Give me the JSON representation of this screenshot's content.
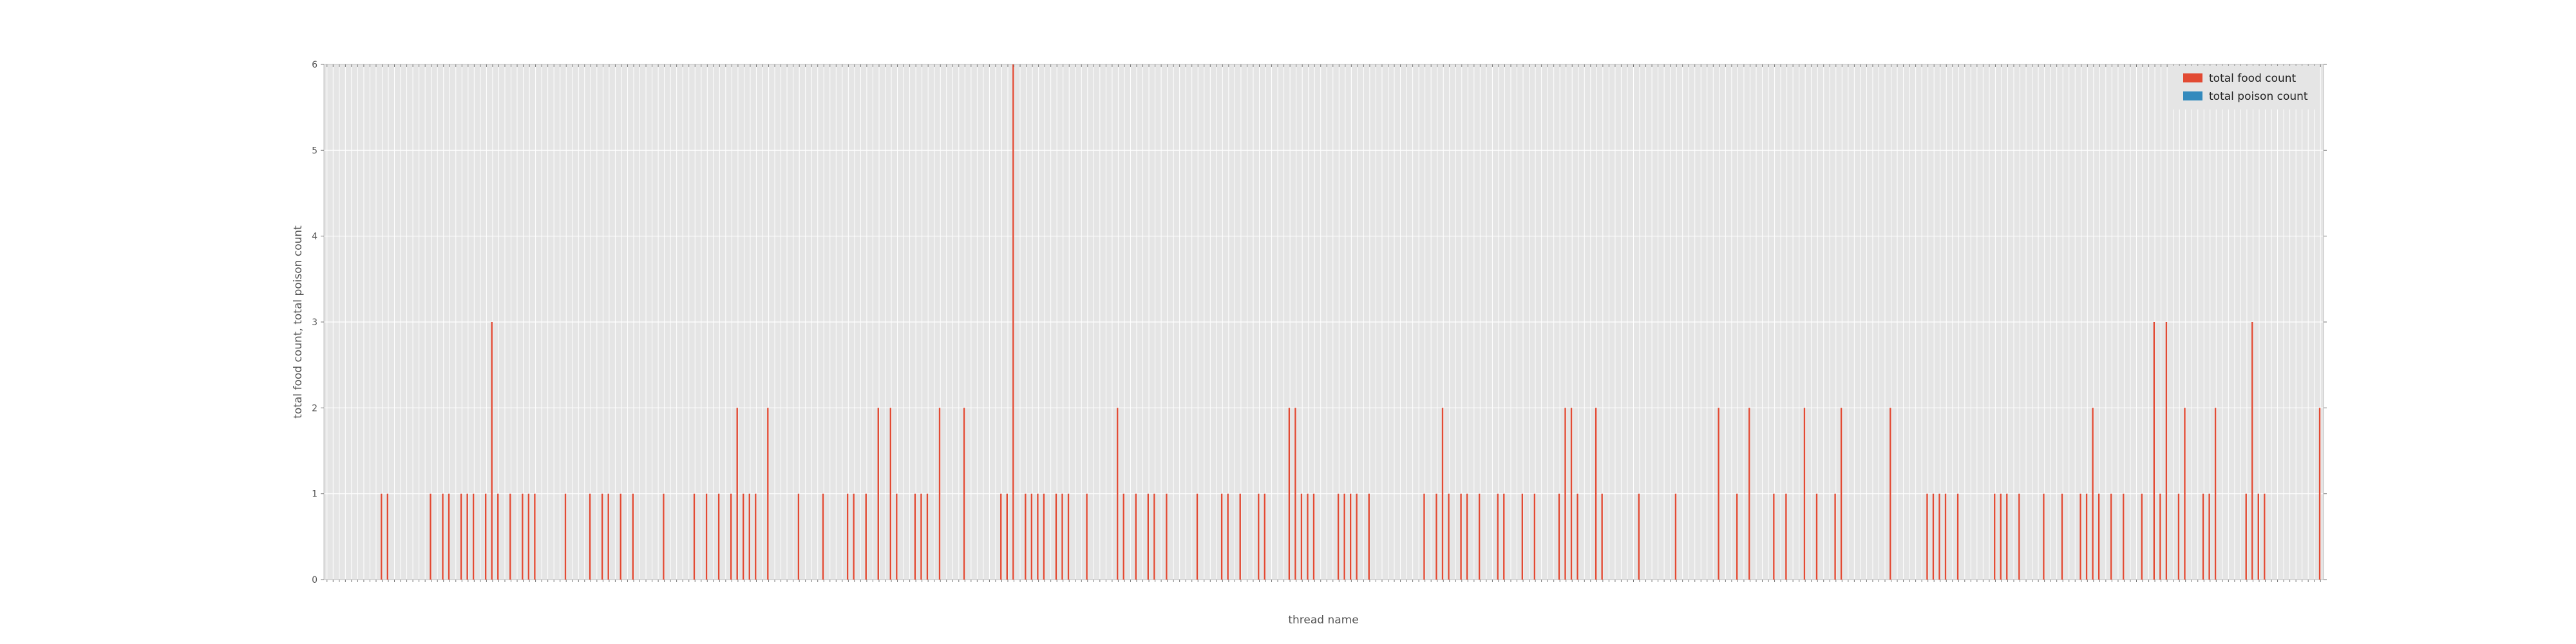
{
  "chart_data": {
    "type": "bar",
    "xlabel": "thread name",
    "ylabel": "total food count, total poison count",
    "ylim": [
      0,
      6
    ],
    "y_ticks": [
      0,
      1,
      2,
      3,
      4,
      5,
      6
    ],
    "grid": true,
    "legend_position": "top-right",
    "x_tick_labels_unreadable": true,
    "series": [
      {
        "name": "total food count",
        "color": "#E24A33",
        "values": [
          0,
          0,
          0,
          0,
          0,
          0,
          0,
          0,
          0,
          1,
          1,
          0,
          0,
          0,
          0,
          0,
          0,
          1,
          0,
          1,
          1,
          0,
          1,
          1,
          1,
          0,
          1,
          3,
          1,
          0,
          1,
          0,
          1,
          1,
          1,
          0,
          0,
          0,
          0,
          1,
          0,
          0,
          0,
          1,
          0,
          1,
          1,
          0,
          1,
          0,
          1,
          0,
          0,
          0,
          0,
          1,
          0,
          0,
          0,
          0,
          1,
          0,
          1,
          0,
          1,
          0,
          1,
          2,
          1,
          1,
          1,
          0,
          2,
          0,
          0,
          0,
          0,
          1,
          0,
          0,
          0,
          1,
          0,
          0,
          0,
          1,
          1,
          0,
          1,
          0,
          2,
          0,
          2,
          1,
          0,
          0,
          1,
          1,
          1,
          0,
          2,
          0,
          0,
          0,
          2,
          0,
          0,
          0,
          0,
          0,
          1,
          1,
          6,
          0,
          1,
          1,
          1,
          1,
          0,
          1,
          1,
          1,
          0,
          0,
          1,
          0,
          0,
          0,
          0,
          2,
          1,
          0,
          1,
          0,
          1,
          1,
          0,
          1,
          0,
          0,
          0,
          0,
          1,
          0,
          0,
          0,
          1,
          1,
          0,
          1,
          0,
          0,
          1,
          1,
          0,
          0,
          0,
          2,
          2,
          1,
          1,
          1,
          0,
          0,
          0,
          1,
          1,
          1,
          1,
          0,
          1,
          0,
          0,
          0,
          0,
          0,
          0,
          0,
          0,
          1,
          0,
          1,
          2,
          1,
          0,
          1,
          1,
          0,
          1,
          0,
          0,
          1,
          1,
          0,
          0,
          1,
          0,
          1,
          0,
          0,
          0,
          1,
          2,
          2,
          1,
          0,
          0,
          2,
          1,
          0,
          0,
          0,
          0,
          0,
          1,
          0,
          0,
          0,
          0,
          0,
          1,
          0,
          0,
          0,
          0,
          0,
          0,
          2,
          0,
          0,
          1,
          0,
          2,
          0,
          0,
          0,
          1,
          0,
          1,
          0,
          0,
          2,
          0,
          1,
          0,
          0,
          1,
          2,
          0,
          0,
          0,
          0,
          0,
          0,
          0,
          2,
          0,
          0,
          0,
          0,
          0,
          1,
          1,
          1,
          1,
          0,
          1,
          0,
          0,
          0,
          0,
          0,
          1,
          1,
          1,
          0,
          1,
          0,
          0,
          0,
          1,
          0,
          0,
          1,
          0,
          0,
          1,
          1,
          2,
          1,
          0,
          1,
          0,
          1,
          0,
          0,
          1,
          0,
          3,
          1,
          3,
          0,
          1,
          2,
          0,
          0,
          1,
          1,
          2,
          0,
          0,
          0,
          0,
          1,
          3,
          1,
          1,
          0,
          0,
          0,
          0,
          0,
          0,
          0,
          0,
          2
        ]
      },
      {
        "name": "total poison count",
        "color": "#348ABD",
        "values": [
          0,
          0,
          0,
          0,
          0,
          0,
          0,
          0,
          0,
          0,
          0,
          0,
          0,
          0,
          0,
          0,
          0,
          0,
          0,
          0,
          0,
          0,
          0,
          0,
          0,
          0,
          0,
          0,
          0,
          0,
          0,
          0,
          0,
          0,
          0,
          0,
          0,
          0,
          0,
          0,
          0,
          0,
          0,
          0,
          0,
          0,
          0,
          0,
          0,
          0,
          0,
          0,
          0,
          0,
          0,
          0,
          0,
          0,
          0,
          0,
          0,
          0,
          0,
          0,
          0,
          0,
          0,
          0,
          0,
          0,
          0,
          0,
          0,
          0,
          0,
          0,
          0,
          0,
          0,
          0,
          0,
          0,
          0,
          0,
          0,
          0,
          0,
          0,
          0,
          0,
          0,
          0,
          0,
          0,
          0,
          0,
          0,
          0,
          0,
          0,
          0,
          0,
          0,
          0,
          0,
          0,
          0,
          0,
          0,
          0,
          0,
          0,
          0,
          0,
          0,
          0,
          0,
          0,
          0,
          0,
          0,
          0,
          0,
          0,
          0,
          0,
          0,
          0,
          0,
          0,
          0,
          0,
          0,
          0,
          0,
          0,
          0,
          0,
          0,
          0,
          0,
          0,
          0,
          0,
          0,
          0,
          0,
          0,
          0,
          0,
          0,
          0,
          0,
          0,
          0,
          0,
          0,
          0,
          0,
          0,
          0,
          0,
          0,
          0,
          0,
          0,
          0,
          0,
          0,
          0,
          0,
          0,
          0,
          0,
          0,
          0,
          0,
          0,
          0,
          0,
          0,
          0,
          0,
          0,
          0,
          0,
          0,
          0,
          0,
          0,
          0,
          0,
          0,
          0,
          0,
          0,
          0,
          0,
          0,
          0,
          0,
          0,
          0,
          0,
          0,
          0,
          0,
          0,
          0,
          0,
          0,
          0,
          0,
          0,
          0,
          0,
          0,
          0,
          0,
          0,
          0,
          0,
          0,
          0,
          0,
          0,
          0,
          0,
          0,
          0,
          0,
          0,
          0,
          0,
          0,
          0,
          0,
          0,
          0,
          0,
          0,
          0,
          0,
          0,
          0,
          0,
          0,
          0,
          0,
          0,
          0,
          0,
          0,
          0,
          0,
          0,
          0,
          0,
          0,
          0,
          0,
          0,
          0,
          0,
          0,
          0,
          0,
          0,
          0,
          0,
          0,
          0,
          0,
          0,
          0,
          0,
          0,
          0,
          0,
          0,
          0,
          0,
          0,
          0,
          0,
          0,
          0,
          0,
          0,
          0,
          0,
          0,
          0,
          0,
          0,
          0,
          0,
          0,
          0,
          0,
          0,
          0,
          0,
          0,
          0,
          0,
          0,
          0,
          0,
          0,
          0,
          0,
          0,
          0,
          0,
          0,
          0,
          0,
          0,
          0,
          0,
          0,
          0,
          0,
          0,
          0,
          0,
          0,
          0,
          0,
          0,
          0,
          0,
          0,
          0,
          0,
          0,
          0,
          0,
          0
        ]
      }
    ]
  }
}
